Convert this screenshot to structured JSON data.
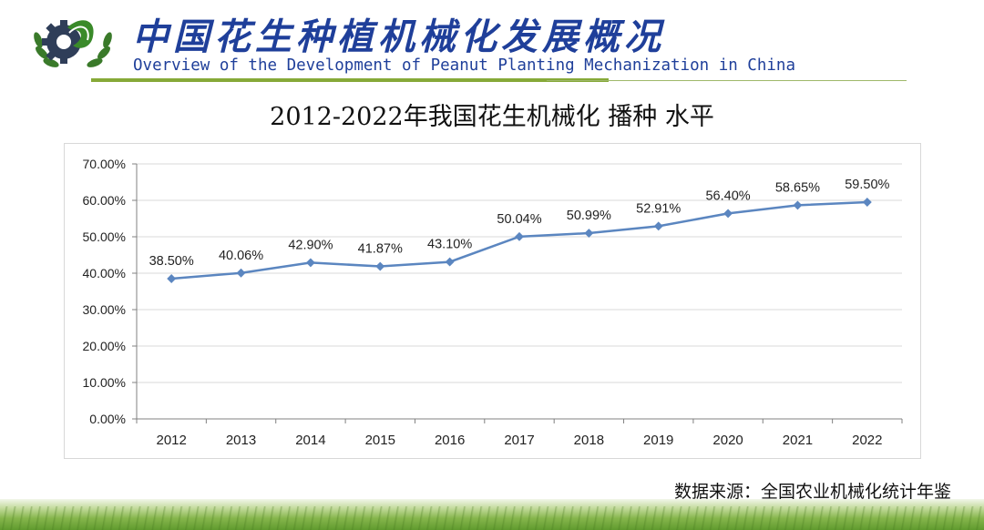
{
  "header": {
    "title_cn": "中国花生种植机械化发展概况",
    "title_en": "Overview of the Development of Peanut Planting Mechanization in China",
    "logo": "peanut-gear-logo"
  },
  "chart_data": {
    "type": "line",
    "title": "2012-2022年我国花生机械化 播种 水平",
    "xlabel": "",
    "ylabel": "",
    "categories": [
      "2012",
      "2013",
      "2014",
      "2015",
      "2016",
      "2017",
      "2018",
      "2019",
      "2020",
      "2021",
      "2022"
    ],
    "series": [
      {
        "values": [
          38.5,
          40.06,
          42.9,
          41.87,
          43.1,
          50.04,
          50.99,
          52.91,
          56.4,
          58.65,
          59.5
        ]
      }
    ],
    "data_labels": [
      "38.50%",
      "40.06%",
      "42.90%",
      "41.87%",
      "43.10%",
      "50.04%",
      "50.99%",
      "52.91%",
      "56.40%",
      "58.65%",
      "59.50%"
    ],
    "yticks": [
      "0.00%",
      "10.00%",
      "20.00%",
      "30.00%",
      "40.00%",
      "50.00%",
      "60.00%",
      "70.00%"
    ],
    "ylim": [
      0,
      70
    ],
    "grid": "horizontal",
    "legend": "none",
    "line_color": "#5b86c0"
  },
  "source_text": "数据来源：全国农业机械化统计年鉴",
  "colors": {
    "title": "#1f3f9a",
    "accent_green": "#86a938",
    "gear": "#2f3e59"
  }
}
